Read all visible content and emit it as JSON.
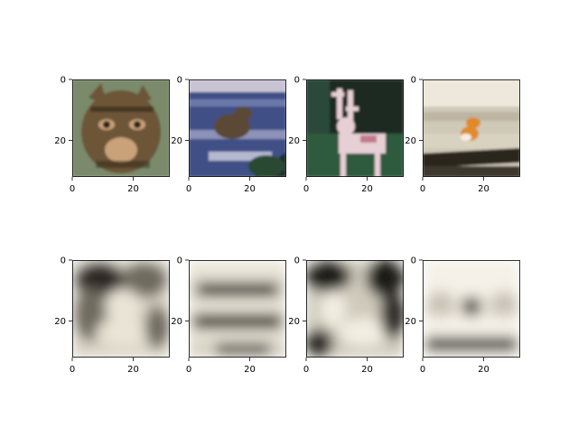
{
  "chart_data": {
    "type": "image-grid",
    "layout": "2 rows x 4 columns",
    "image_size": [
      32,
      32
    ],
    "axis_range": [
      0,
      32
    ],
    "x_ticks": [
      0,
      20
    ],
    "y_ticks": [
      0,
      20
    ],
    "x_tick_labels": [
      "0",
      "20"
    ],
    "y_tick_labels": [
      "0",
      "20"
    ],
    "panels": [
      {
        "row": 0,
        "col": 0,
        "content": "cat",
        "style": "sharp",
        "palette": {
          "bg": "#7a8a6a",
          "main": "#6d5438",
          "accent": "#c9a27a",
          "dark": "#2e2418"
        }
      },
      {
        "row": 0,
        "col": 1,
        "content": "animal in water",
        "style": "sharp",
        "palette": {
          "bg": "#3f4f86",
          "main": "#5b4a36",
          "accent": "#c8c4d4",
          "dark": "#1f2f2a"
        }
      },
      {
        "row": 0,
        "col": 2,
        "content": "deer",
        "style": "sharp",
        "palette": {
          "bg": "#1a2a24",
          "main": "#2d5a3e",
          "accent": "#e7cfd6",
          "dark": "#0d1512"
        }
      },
      {
        "row": 0,
        "col": 3,
        "content": "bird",
        "style": "sharp",
        "palette": {
          "bg": "#cfc9b8",
          "main": "#e08a2a",
          "accent": "#eee8dc",
          "dark": "#2a261f"
        }
      },
      {
        "row": 1,
        "col": 0,
        "content": "reconstruction 1",
        "style": "blurred",
        "palette": {
          "bg": "#d8d3c4",
          "main": "#6f6a5e",
          "accent": "#e9e4d6",
          "dark": "#2a2620"
        }
      },
      {
        "row": 1,
        "col": 1,
        "content": "reconstruction 2",
        "style": "blurred",
        "palette": {
          "bg": "#d5d0c2",
          "main": "#3d3a33",
          "accent": "#ebe7da",
          "dark": "#26231e"
        }
      },
      {
        "row": 1,
        "col": 2,
        "content": "reconstruction 3",
        "style": "blurred",
        "palette": {
          "bg": "#cfcabb",
          "main": "#2f2c27",
          "accent": "#f2eee2",
          "dark": "#1e1c18"
        }
      },
      {
        "row": 1,
        "col": 3,
        "content": "reconstruction 4",
        "style": "blurred",
        "palette": {
          "bg": "#e6e2d6",
          "main": "#4b463e",
          "accent": "#f4f1e8",
          "dark": "#1b1915"
        }
      }
    ]
  }
}
